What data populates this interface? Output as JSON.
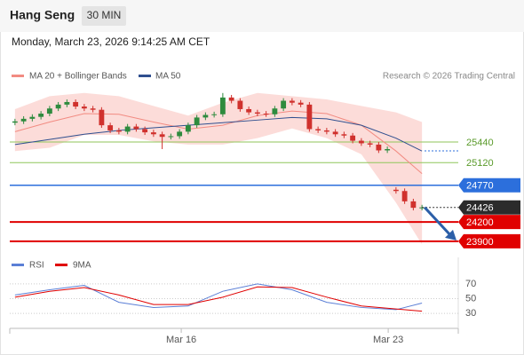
{
  "chart_data": {
    "type": "candlestick",
    "title": "Hang Seng",
    "interval": "30 MIN",
    "subtitle": "Monday, March 23, 2026 9:14:25 AM CET",
    "credit": "Research © 2026 Trading Central",
    "xlim": [
      -0.5,
      47.5
    ],
    "xticks": [
      {
        "value": 19.2,
        "label": "Mar 16"
      },
      {
        "value": 43.1,
        "label": "Mar 23"
      }
    ],
    "ylim": [
      23720,
      26610
    ],
    "up_color": "#2e8b3e",
    "down_color": "#d0312d",
    "open": [
      25740,
      25760,
      25800,
      25830,
      25880,
      25960,
      26020,
      26060,
      25990,
      25960,
      25940,
      25700,
      25620,
      25600,
      25680,
      25640,
      25590,
      25560,
      25520,
      25530,
      25600,
      25700,
      25820,
      25860,
      25870,
      26130,
      26080,
      25950,
      25900,
      25880,
      25870,
      25960,
      26080,
      26050,
      26020,
      25640,
      25620,
      25600,
      25560,
      25540,
      25460,
      25420,
      25400,
      25310,
      24700,
      24680,
      24520,
      24420
    ],
    "high": [
      25800,
      25840,
      25870,
      25920,
      26000,
      26060,
      26100,
      26100,
      26030,
      26000,
      25980,
      25740,
      25660,
      25720,
      25720,
      25680,
      25630,
      25600,
      25570,
      25640,
      25740,
      25860,
      25900,
      25910,
      26200,
      26170,
      26120,
      25990,
      25940,
      25920,
      26000,
      26120,
      26120,
      26090,
      26060,
      25680,
      25660,
      25640,
      25600,
      25580,
      25500,
      25460,
      25440,
      25370,
      24740,
      24720,
      24560,
      24466
    ],
    "low": [
      25700,
      25720,
      25760,
      25790,
      25840,
      25920,
      25980,
      25950,
      25920,
      25900,
      25660,
      25580,
      25560,
      25560,
      25600,
      25550,
      25520,
      25330,
      25480,
      25490,
      25560,
      25660,
      25780,
      25820,
      25830,
      26040,
      25910,
      25860,
      25840,
      25830,
      25830,
      25920,
      26010,
      25980,
      25600,
      25580,
      25560,
      25520,
      25500,
      25420,
      25380,
      25360,
      25270,
      25270,
      24640,
      24480,
      24380,
      24380
    ],
    "close": [
      25760,
      25800,
      25830,
      25880,
      25960,
      26020,
      26060,
      25990,
      25960,
      25940,
      25700,
      25620,
      25600,
      25680,
      25640,
      25590,
      25560,
      25520,
      25530,
      25600,
      25700,
      25820,
      25860,
      25870,
      26130,
      26080,
      25950,
      25900,
      25880,
      25870,
      25960,
      26080,
      26050,
      26020,
      25640,
      25620,
      25600,
      25560,
      25540,
      25460,
      25420,
      25400,
      25310,
      25330,
      24680,
      24520,
      24420,
      24426
    ],
    "lines_x": [
      0,
      4,
      8,
      12,
      16,
      20,
      24,
      28,
      32,
      36,
      40,
      44,
      47
    ],
    "bands": {
      "name": "MA 20 + Bollinger Bands",
      "color": "#f28b82",
      "fill": "#fbd3d0",
      "upper": [
        25950,
        26150,
        26200,
        26150,
        26000,
        25850,
        26050,
        26200,
        26150,
        26100,
        26000,
        25900,
        25750
      ],
      "lower": [
        25300,
        25350,
        25550,
        25550,
        25450,
        25400,
        25400,
        25500,
        25650,
        25500,
        25250,
        24500,
        23850
      ],
      "values": [
        25600,
        25750,
        25880,
        25870,
        25750,
        25640,
        25700,
        25850,
        25920,
        25880,
        25700,
        25300,
        24950
      ]
    },
    "ma50": {
      "name": "MA 50",
      "color": "#2f4f8f",
      "values": [
        25400,
        25480,
        25560,
        25620,
        25660,
        25700,
        25740,
        25780,
        25820,
        25800,
        25700,
        25500,
        25300
      ]
    },
    "levels": [
      {
        "value": 25440,
        "color": "#8fc65a",
        "boxed": false
      },
      {
        "value": 25120,
        "color": "#8fc65a",
        "boxed": false
      },
      {
        "value": 24770,
        "color": "#2c6fdc",
        "boxed": true
      },
      {
        "value": 24200,
        "color": "#e00000",
        "boxed": true
      },
      {
        "value": 23900,
        "color": "#e00000",
        "boxed": true
      }
    ],
    "last": {
      "value": 24426,
      "color": "#2b2b2b"
    },
    "rsi": {
      "ylim": [
        12,
        94
      ],
      "yticks": [
        70,
        50,
        30
      ],
      "series": [
        {
          "name": "RSI",
          "color": "#5b7fd6",
          "values": [
            55,
            62,
            68,
            45,
            38,
            40,
            60,
            70,
            62,
            45,
            38,
            35,
            44
          ]
        },
        {
          "name": "9MA",
          "color": "#e00000",
          "values": [
            52,
            60,
            65,
            55,
            42,
            42,
            52,
            66,
            65,
            52,
            40,
            36,
            33
          ]
        }
      ]
    }
  }
}
